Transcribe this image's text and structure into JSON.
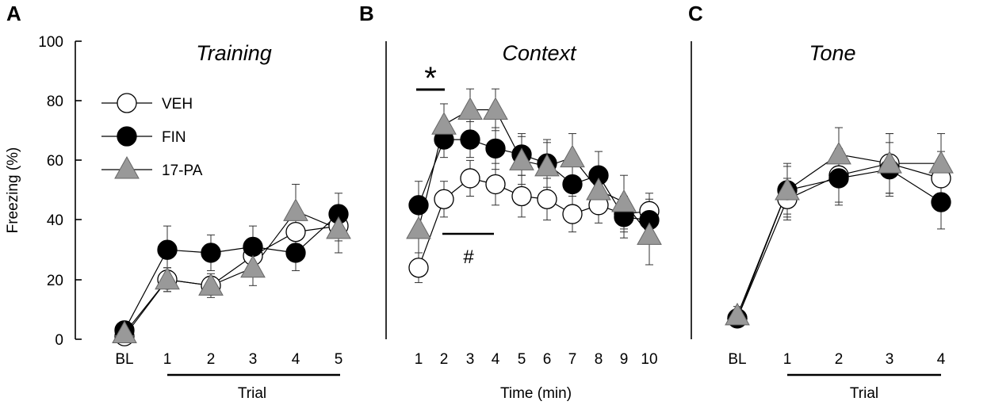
{
  "y_axis": {
    "label": "Freezing (%)",
    "ylim": [
      0,
      100
    ],
    "ticks": [
      "0",
      "20",
      "40",
      "60",
      "80",
      "100"
    ]
  },
  "legend": [
    {
      "label": "VEH",
      "marker": "circle-open"
    },
    {
      "label": "FIN",
      "marker": "circle-filled"
    },
    {
      "label": "17-PA",
      "marker": "triangle-gray"
    }
  ],
  "colors": {
    "veh_fill": "#ffffff",
    "fin_fill": "#000000",
    "pa_fill": "#999999",
    "line": "#000000"
  },
  "chart_data": [
    {
      "panel": "A",
      "type": "line",
      "title": "Training",
      "xlabel": "Trial",
      "ylabel": "Freezing (%)",
      "ylim": [
        0,
        100
      ],
      "categories": [
        "BL",
        "1",
        "2",
        "3",
        "4",
        "5"
      ],
      "series": [
        {
          "name": "VEH",
          "values": [
            1,
            20,
            18,
            28,
            36,
            38
          ],
          "err": [
            1,
            4,
            3,
            5,
            5,
            5
          ]
        },
        {
          "name": "FIN",
          "values": [
            3,
            30,
            29,
            31,
            29,
            42
          ],
          "err": [
            1,
            8,
            6,
            7,
            6,
            7
          ]
        },
        {
          "name": "17-PA",
          "values": [
            2,
            20,
            18,
            24,
            43,
            37
          ],
          "err": [
            1,
            4,
            4,
            6,
            9,
            8
          ]
        }
      ]
    },
    {
      "panel": "B",
      "type": "line",
      "title": "Context",
      "xlabel": "Time (min)",
      "ylabel": "",
      "ylim": [
        0,
        100
      ],
      "categories": [
        "1",
        "2",
        "3",
        "4",
        "5",
        "6",
        "7",
        "8",
        "9",
        "10"
      ],
      "series": [
        {
          "name": "VEH",
          "values": [
            24,
            47,
            54,
            52,
            48,
            47,
            42,
            45,
            42,
            43
          ],
          "err": [
            5,
            6,
            6,
            7,
            7,
            7,
            6,
            6,
            6,
            6
          ]
        },
        {
          "name": "FIN",
          "values": [
            45,
            67,
            67,
            64,
            62,
            59,
            52,
            55,
            41,
            40
          ],
          "err": [
            8,
            6,
            6,
            7,
            7,
            8,
            8,
            8,
            7,
            7
          ]
        },
        {
          "name": "17-PA",
          "values": [
            37,
            72,
            77,
            77,
            60,
            58,
            61,
            50,
            46,
            35
          ],
          "err": [
            10,
            7,
            7,
            7,
            8,
            8,
            8,
            8,
            9,
            10
          ]
        }
      ],
      "annotations": [
        {
          "text": "*",
          "span": [
            "1",
            "2"
          ]
        },
        {
          "text": "#",
          "span": [
            "2",
            "4"
          ]
        }
      ]
    },
    {
      "panel": "C",
      "type": "line",
      "title": "Tone",
      "xlabel": "Trial",
      "ylabel": "",
      "ylim": [
        0,
        100
      ],
      "categories": [
        "BL",
        "1",
        "2",
        "3",
        "4"
      ],
      "series": [
        {
          "name": "VEH",
          "values": [
            7,
            47,
            55,
            59,
            54
          ],
          "err": [
            3,
            7,
            9,
            10,
            9
          ]
        },
        {
          "name": "FIN",
          "values": [
            7,
            50,
            54,
            57,
            46
          ],
          "err": [
            3,
            8,
            9,
            9,
            9
          ]
        },
        {
          "name": "17-PA",
          "values": [
            8,
            50,
            62,
            59,
            59
          ],
          "err": [
            3,
            9,
            9,
            10,
            10
          ]
        }
      ]
    }
  ]
}
